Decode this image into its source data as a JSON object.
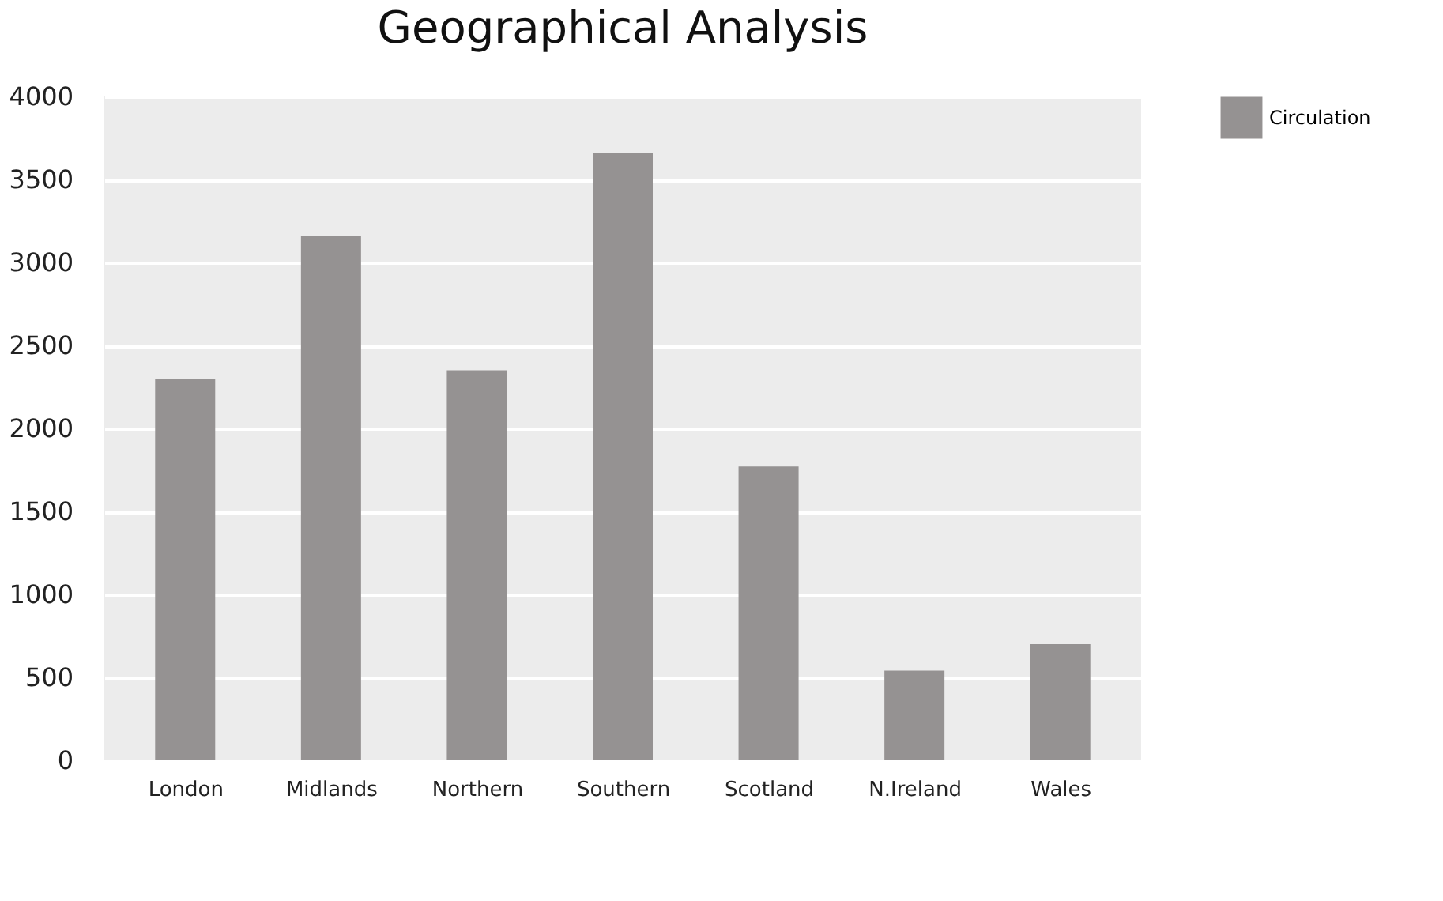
{
  "chart_data": {
    "type": "bar",
    "title": "Geographical Analysis",
    "categories": [
      "London",
      "Midlands",
      "Northern",
      "Southern",
      "Scotland",
      "N.Ireland",
      "Wales"
    ],
    "series": [
      {
        "name": "Circulation",
        "color": "#959292",
        "values": [
          2300,
          3160,
          2350,
          3660,
          1770,
          540,
          700
        ]
      }
    ],
    "ylim": [
      0,
      4000
    ],
    "yticks": [
      0,
      500,
      1000,
      1500,
      2000,
      2500,
      3000,
      3500,
      4000
    ],
    "grid": "y",
    "legend": "right"
  }
}
